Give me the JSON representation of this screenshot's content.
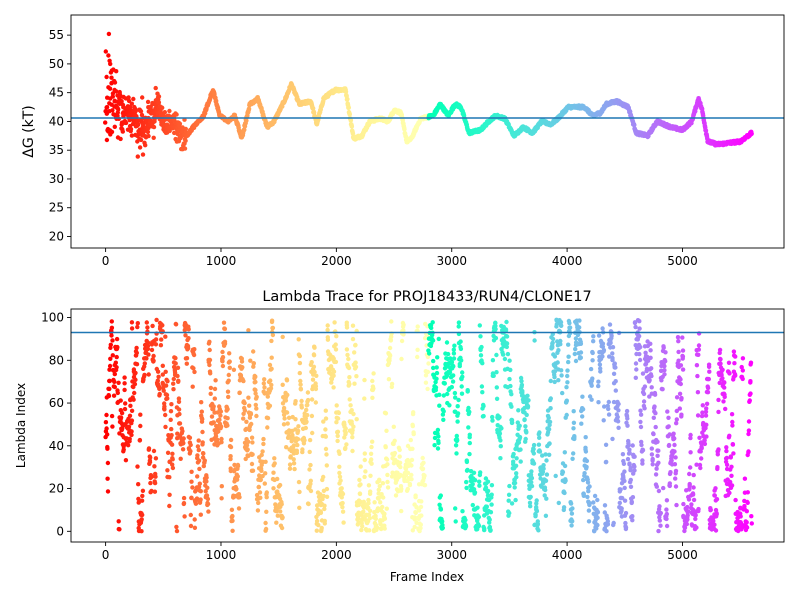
{
  "chart_data": [
    {
      "type": "scatter",
      "title": "",
      "xlabel": "",
      "ylabel": "ΔG (kT)",
      "xlim": [
        -300,
        5880
      ],
      "ylim": [
        18,
        58.5
      ],
      "xticks": [
        0,
        1000,
        2000,
        3000,
        4000,
        5000
      ],
      "yticks": [
        20,
        25,
        30,
        35,
        40,
        45,
        50,
        55
      ],
      "hline": 40.6,
      "hline_color": "#1f77b4",
      "colormap": "rainbow",
      "grid": false,
      "n_frames": 5600,
      "trace_profile": [
        [
          0,
          42
        ],
        [
          40,
          45
        ],
        [
          80,
          44
        ],
        [
          150,
          41
        ],
        [
          250,
          40
        ],
        [
          350,
          39
        ],
        [
          450,
          43
        ],
        [
          520,
          39
        ],
        [
          600,
          40
        ],
        [
          680,
          37
        ],
        [
          760,
          39
        ],
        [
          850,
          41
        ],
        [
          930,
          45.5
        ],
        [
          990,
          41
        ],
        [
          1060,
          40
        ],
        [
          1120,
          41
        ],
        [
          1180,
          37
        ],
        [
          1250,
          43
        ],
        [
          1320,
          44
        ],
        [
          1400,
          39
        ],
        [
          1460,
          40
        ],
        [
          1560,
          44
        ],
        [
          1610,
          46.5
        ],
        [
          1680,
          43
        ],
        [
          1780,
          43.5
        ],
        [
          1830,
          39.5
        ],
        [
          1890,
          44
        ],
        [
          1990,
          45.5
        ],
        [
          2080,
          45.5
        ],
        [
          2150,
          37
        ],
        [
          2220,
          37.5
        ],
        [
          2290,
          40
        ],
        [
          2380,
          40.5
        ],
        [
          2450,
          40
        ],
        [
          2500,
          42
        ],
        [
          2560,
          41.5
        ],
        [
          2610,
          36.5
        ],
        [
          2650,
          37
        ],
        [
          2730,
          40.5
        ],
        [
          2840,
          41
        ],
        [
          2900,
          43
        ],
        [
          2970,
          41
        ],
        [
          3030,
          43
        ],
        [
          3080,
          42.5
        ],
        [
          3150,
          38
        ],
        [
          3250,
          38.5
        ],
        [
          3320,
          40
        ],
        [
          3380,
          41
        ],
        [
          3460,
          40.5
        ],
        [
          3540,
          37.5
        ],
        [
          3620,
          39
        ],
        [
          3700,
          38
        ],
        [
          3780,
          40
        ],
        [
          3860,
          39.5
        ],
        [
          3920,
          40.5
        ],
        [
          4010,
          42.5
        ],
        [
          4150,
          42.5
        ],
        [
          4220,
          41
        ],
        [
          4290,
          41.5
        ],
        [
          4340,
          43
        ],
        [
          4430,
          43.5
        ],
        [
          4530,
          42.5
        ],
        [
          4600,
          38
        ],
        [
          4700,
          37.5
        ],
        [
          4780,
          40
        ],
        [
          4900,
          39
        ],
        [
          5000,
          38.5
        ],
        [
          5080,
          40
        ],
        [
          5140,
          44
        ],
        [
          5170,
          42
        ],
        [
          5220,
          36.5
        ],
        [
          5300,
          36
        ],
        [
          5500,
          36.5
        ],
        [
          5600,
          38
        ]
      ]
    },
    {
      "type": "scatter",
      "title": "Lambda Trace for PROJ18433/RUN4/CLONE17",
      "xlabel": "Frame Index",
      "ylabel": "Lambda Index",
      "xlim": [
        -300,
        5880
      ],
      "ylim": [
        -5,
        104
      ],
      "xticks": [
        0,
        1000,
        2000,
        3000,
        4000,
        5000
      ],
      "yticks": [
        0,
        20,
        40,
        60,
        80,
        100
      ],
      "hline": 93,
      "hline_color": "#1f77b4",
      "colormap": "rainbow",
      "grid": false,
      "n_frames": 5600
    }
  ]
}
